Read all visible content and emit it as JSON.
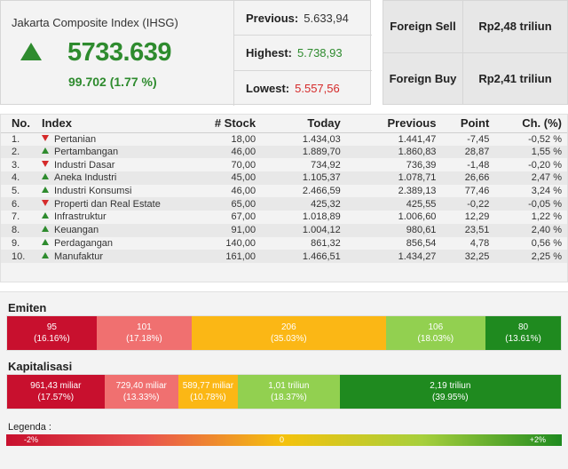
{
  "index": {
    "name": "Jakarta Composite Index (IHSG)",
    "value": "5733.639",
    "change": "99.702 (1.77 %)"
  },
  "prices": [
    {
      "label": "Previous:",
      "value": "5.633,94",
      "color": "#333333"
    },
    {
      "label": "Highest:",
      "value": "5.738,93",
      "color": "#2e8b2e"
    },
    {
      "label": "Lowest:",
      "value": "5.557,56",
      "color": "#d52a2a"
    }
  ],
  "foreign": [
    {
      "label": "Foreign Sell",
      "value": "Rp2,48 triliun"
    },
    {
      "label": "Foreign Buy",
      "value": "Rp2,41 triliun"
    }
  ],
  "table": {
    "headers": [
      "No.",
      "Index",
      "# Stock",
      "Today",
      "Previous",
      "Point",
      "Ch. (%)"
    ],
    "rows": [
      {
        "no": "1.",
        "index": "Pertanian",
        "dir": "down",
        "stock": "18,00",
        "today": "1.434,03",
        "previous": "1.441,47",
        "point": "-7,45",
        "ch": "-0,52 %"
      },
      {
        "no": "2.",
        "index": "Pertambangan",
        "dir": "up",
        "stock": "46,00",
        "today": "1.889,70",
        "previous": "1.860,83",
        "point": "28,87",
        "ch": "1,55 %"
      },
      {
        "no": "3.",
        "index": "Industri Dasar",
        "dir": "down",
        "stock": "70,00",
        "today": "734,92",
        "previous": "736,39",
        "point": "-1,48",
        "ch": "-0,20 %"
      },
      {
        "no": "4.",
        "index": "Aneka Industri",
        "dir": "up",
        "stock": "45,00",
        "today": "1.105,37",
        "previous": "1.078,71",
        "point": "26,66",
        "ch": "2,47 %"
      },
      {
        "no": "5.",
        "index": "Industri Konsumsi",
        "dir": "up",
        "stock": "46,00",
        "today": "2.466,59",
        "previous": "2.389,13",
        "point": "77,46",
        "ch": "3,24 %"
      },
      {
        "no": "6.",
        "index": "Properti dan Real Estate",
        "dir": "down",
        "stock": "65,00",
        "today": "425,32",
        "previous": "425,55",
        "point": "-0,22",
        "ch": "-0,05 %"
      },
      {
        "no": "7.",
        "index": "Infrastruktur",
        "dir": "up",
        "stock": "67,00",
        "today": "1.018,89",
        "previous": "1.006,60",
        "point": "12,29",
        "ch": "1,22 %"
      },
      {
        "no": "8.",
        "index": "Keuangan",
        "dir": "up",
        "stock": "91,00",
        "today": "1.004,12",
        "previous": "980,61",
        "point": "23,51",
        "ch": "2,40 %"
      },
      {
        "no": "9.",
        "index": "Perdagangan",
        "dir": "up",
        "stock": "140,00",
        "today": "861,32",
        "previous": "856,54",
        "point": "4,78",
        "ch": "0,56 %"
      },
      {
        "no": "10.",
        "index": "Manufaktur",
        "dir": "up",
        "stock": "161,00",
        "today": "1.466,51",
        "previous": "1.434,27",
        "point": "32,25",
        "ch": "2,25 %"
      }
    ]
  },
  "emiten": {
    "title": "Emiten",
    "segments": [
      {
        "value": "95",
        "pct": "(16.16%)",
        "share": 16.16,
        "color": "#c8102e"
      },
      {
        "value": "101",
        "pct": "(17.18%)",
        "share": 17.18,
        "color": "#f07070"
      },
      {
        "value": "206",
        "pct": "(35.03%)",
        "share": 35.03,
        "color": "#fbb715"
      },
      {
        "value": "106",
        "pct": "(18.03%)",
        "share": 18.03,
        "color": "#92d050"
      },
      {
        "value": "80",
        "pct": "(13.61%)",
        "share": 13.61,
        "color": "#1f8a1f"
      }
    ]
  },
  "kapitalisasi": {
    "title": "Kapitalisasi",
    "segments": [
      {
        "value": "961,43 miliar",
        "pct": "(17.57%)",
        "share": 17.57,
        "color": "#c8102e"
      },
      {
        "value": "729,40 miliar",
        "pct": "(13.33%)",
        "share": 13.33,
        "color": "#f07070"
      },
      {
        "value": "589,77 miliar",
        "pct": "(10.78%)",
        "share": 10.78,
        "color": "#fbb715"
      },
      {
        "value": "1,01 triliun",
        "pct": "(18.37%)",
        "share": 18.37,
        "color": "#92d050"
      },
      {
        "value": "2,19 triliun",
        "pct": "(39.95%)",
        "share": 39.95,
        "color": "#1f8a1f"
      }
    ]
  },
  "legend": {
    "label": "Legenda :",
    "min": "-2%",
    "mid": "0",
    "max": "+2%"
  }
}
